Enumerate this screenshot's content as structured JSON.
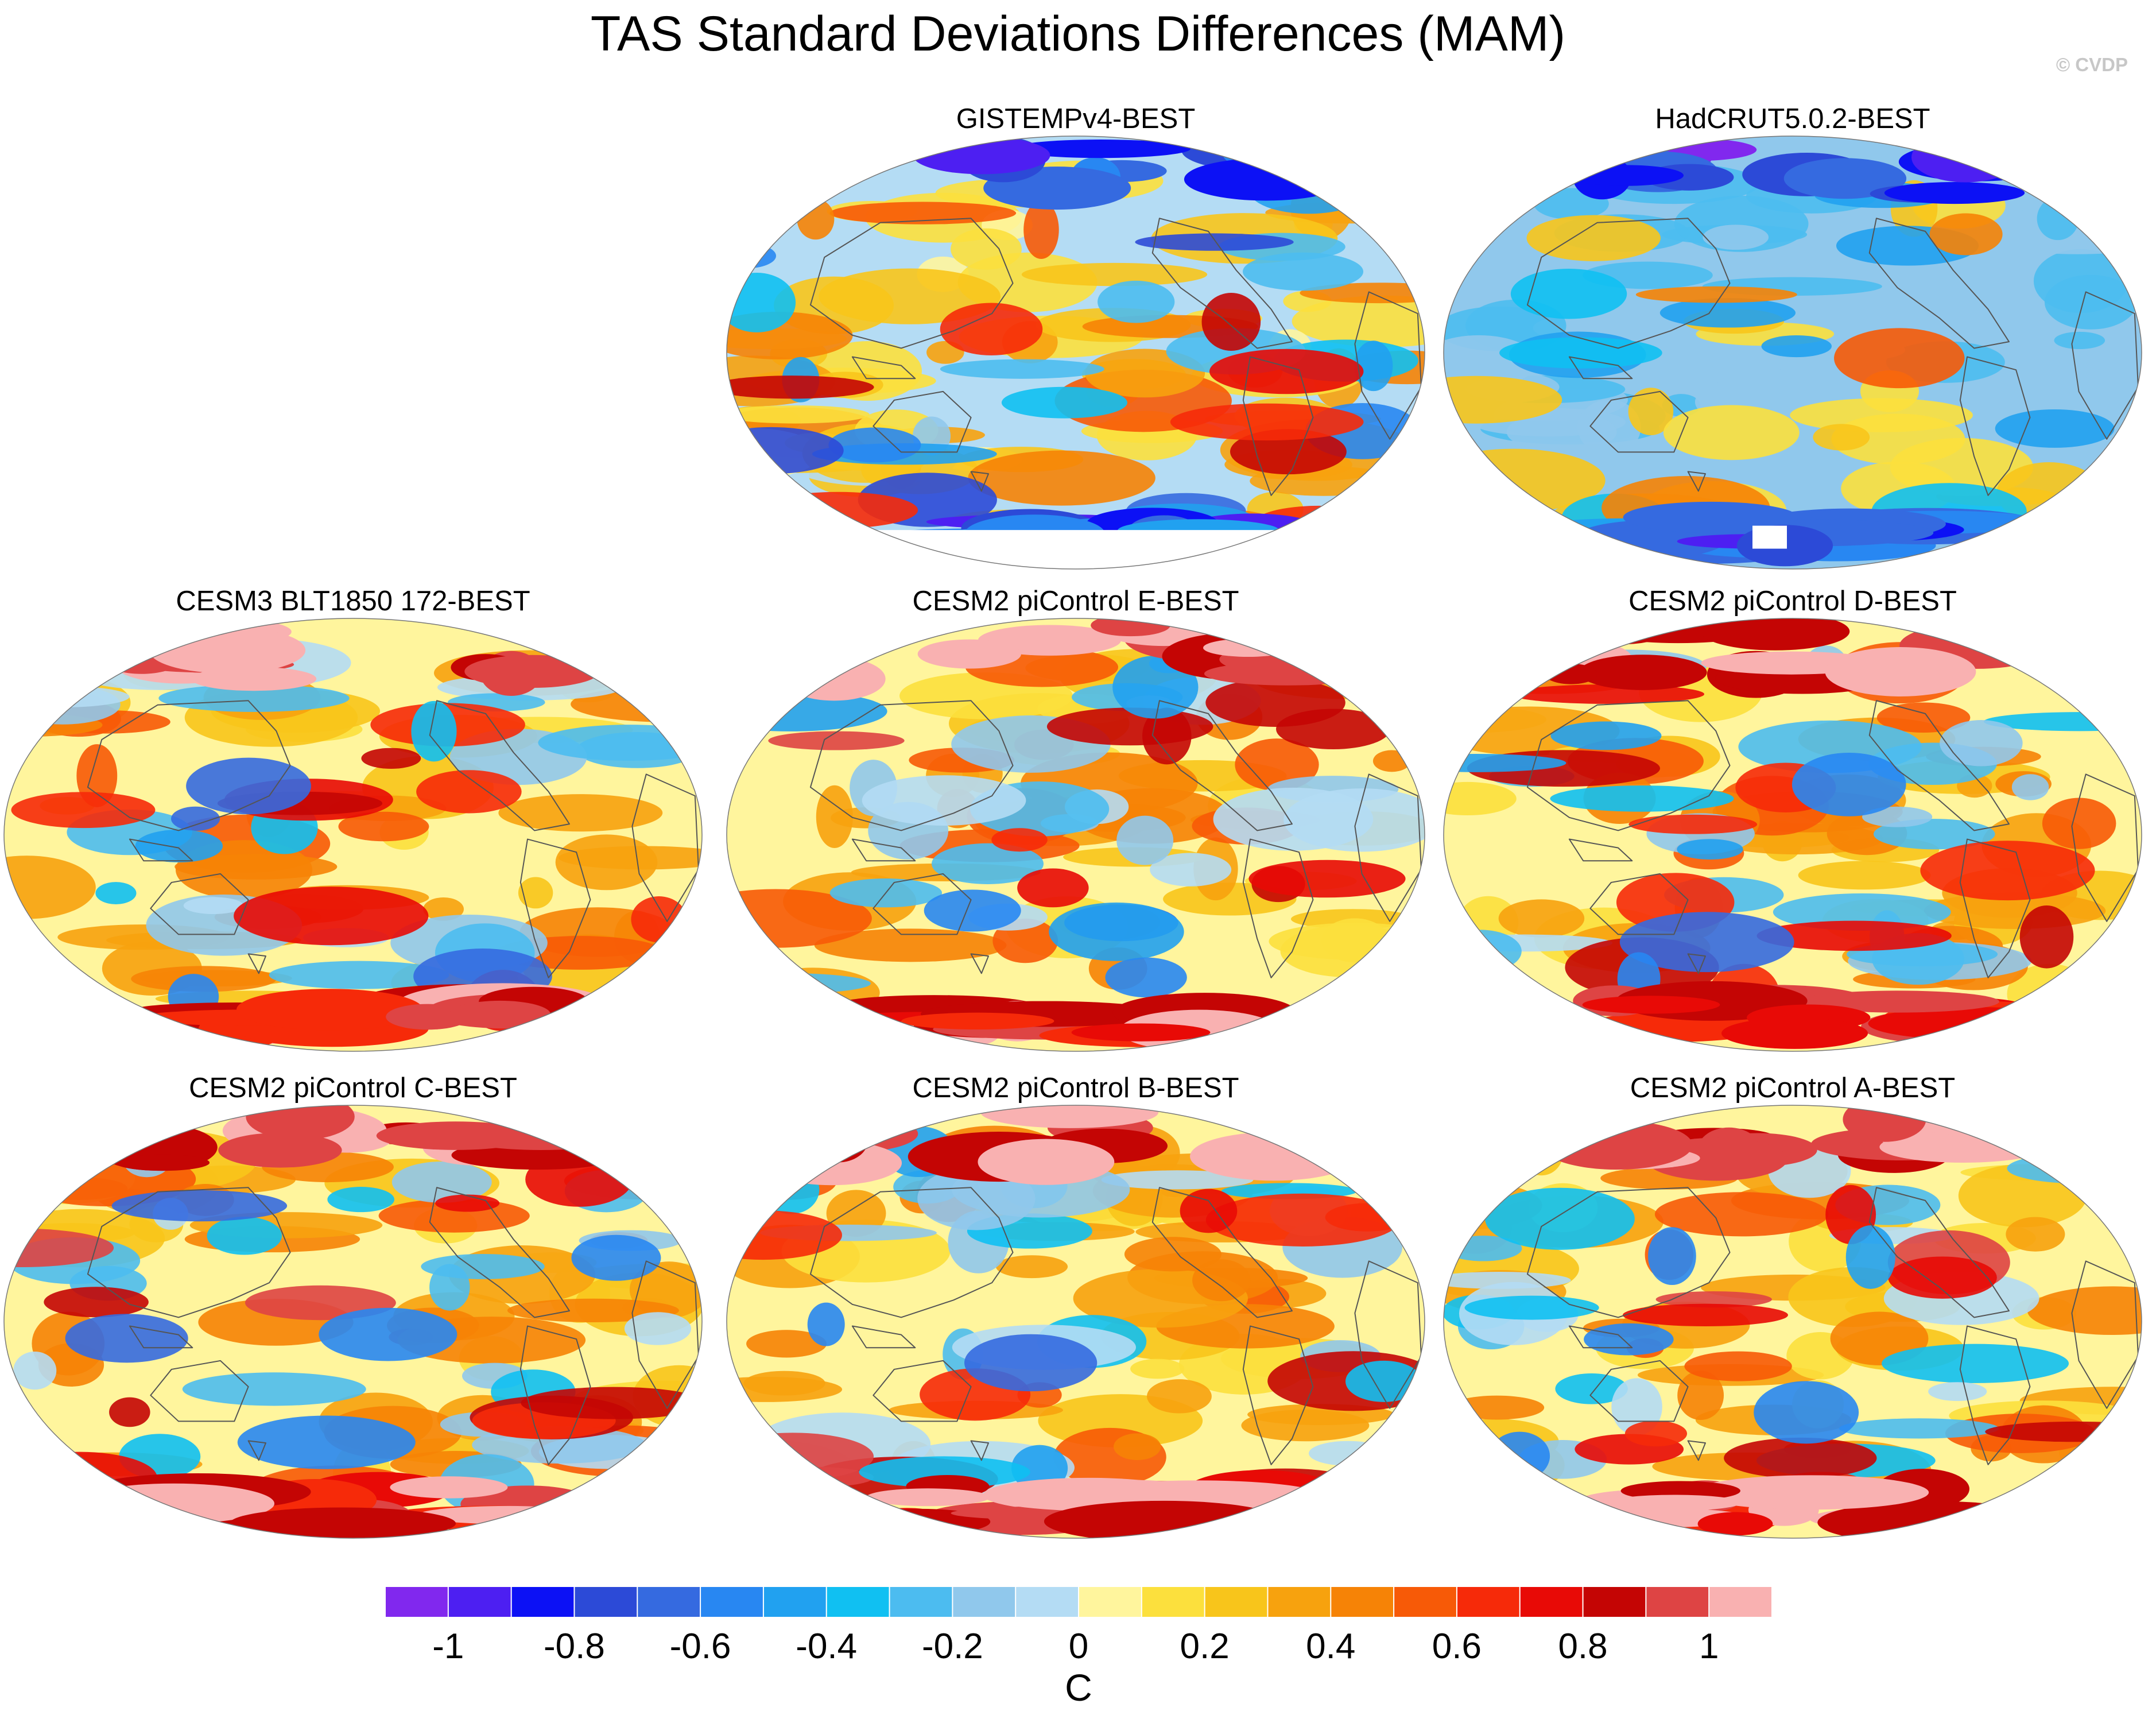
{
  "title": "TAS Standard Deviations Differences (MAM)",
  "credit": "© CVDP",
  "chart_data": {
    "type": "heatmap",
    "title": "TAS Standard Deviations Differences (MAM)",
    "projection": "Robinson-style global map, Pacific-centered",
    "variable": "TAS",
    "season": "MAM",
    "panels": [
      {
        "label": "GISTEMPv4-BEST",
        "pattern": "cool",
        "polar_mask": true
      },
      {
        "label": "HadCRUT5.0.2-BEST",
        "pattern": "cool-blue",
        "polar_mask": false
      },
      {
        "label": "CESM3 BLT1850 172-BEST",
        "pattern": "warm",
        "polar_mask": false
      },
      {
        "label": "CESM2 piControl E-BEST",
        "pattern": "warm",
        "polar_mask": false
      },
      {
        "label": "CESM2 piControl D-BEST",
        "pattern": "warm",
        "polar_mask": false
      },
      {
        "label": "CESM2 piControl C-BEST",
        "pattern": "warm",
        "polar_mask": false
      },
      {
        "label": "CESM2 piControl B-BEST",
        "pattern": "warm",
        "polar_mask": false
      },
      {
        "label": "CESM2 piControl A-BEST",
        "pattern": "warm",
        "polar_mask": false
      }
    ],
    "colorbar": {
      "unit": "C",
      "range": [
        -1.1,
        1.1
      ],
      "step": 0.1,
      "tick_values": [
        -1,
        -0.8,
        -0.6,
        -0.4,
        -0.2,
        0,
        0.2,
        0.4,
        0.6,
        0.8,
        1
      ],
      "tick_labels": [
        "-1",
        "-0.8",
        "-0.6",
        "-0.4",
        "-0.2",
        "0",
        "0.2",
        "0.4",
        "0.6",
        "0.8",
        "1"
      ],
      "colors": [
        "#8128ee",
        "#4d1ff2",
        "#0c11f5",
        "#2c4ad7",
        "#356ae0",
        "#2887f2",
        "#21a1f0",
        "#10c0f2",
        "#4cbcf0",
        "#90c8ec",
        "#b4dcf4",
        "#fff59d",
        "#fce03d",
        "#f8c51b",
        "#f7a20e",
        "#f68306",
        "#f75a07",
        "#f62a09",
        "#e80a06",
        "#c40504",
        "#de4444",
        "#f9b1b1"
      ]
    }
  }
}
